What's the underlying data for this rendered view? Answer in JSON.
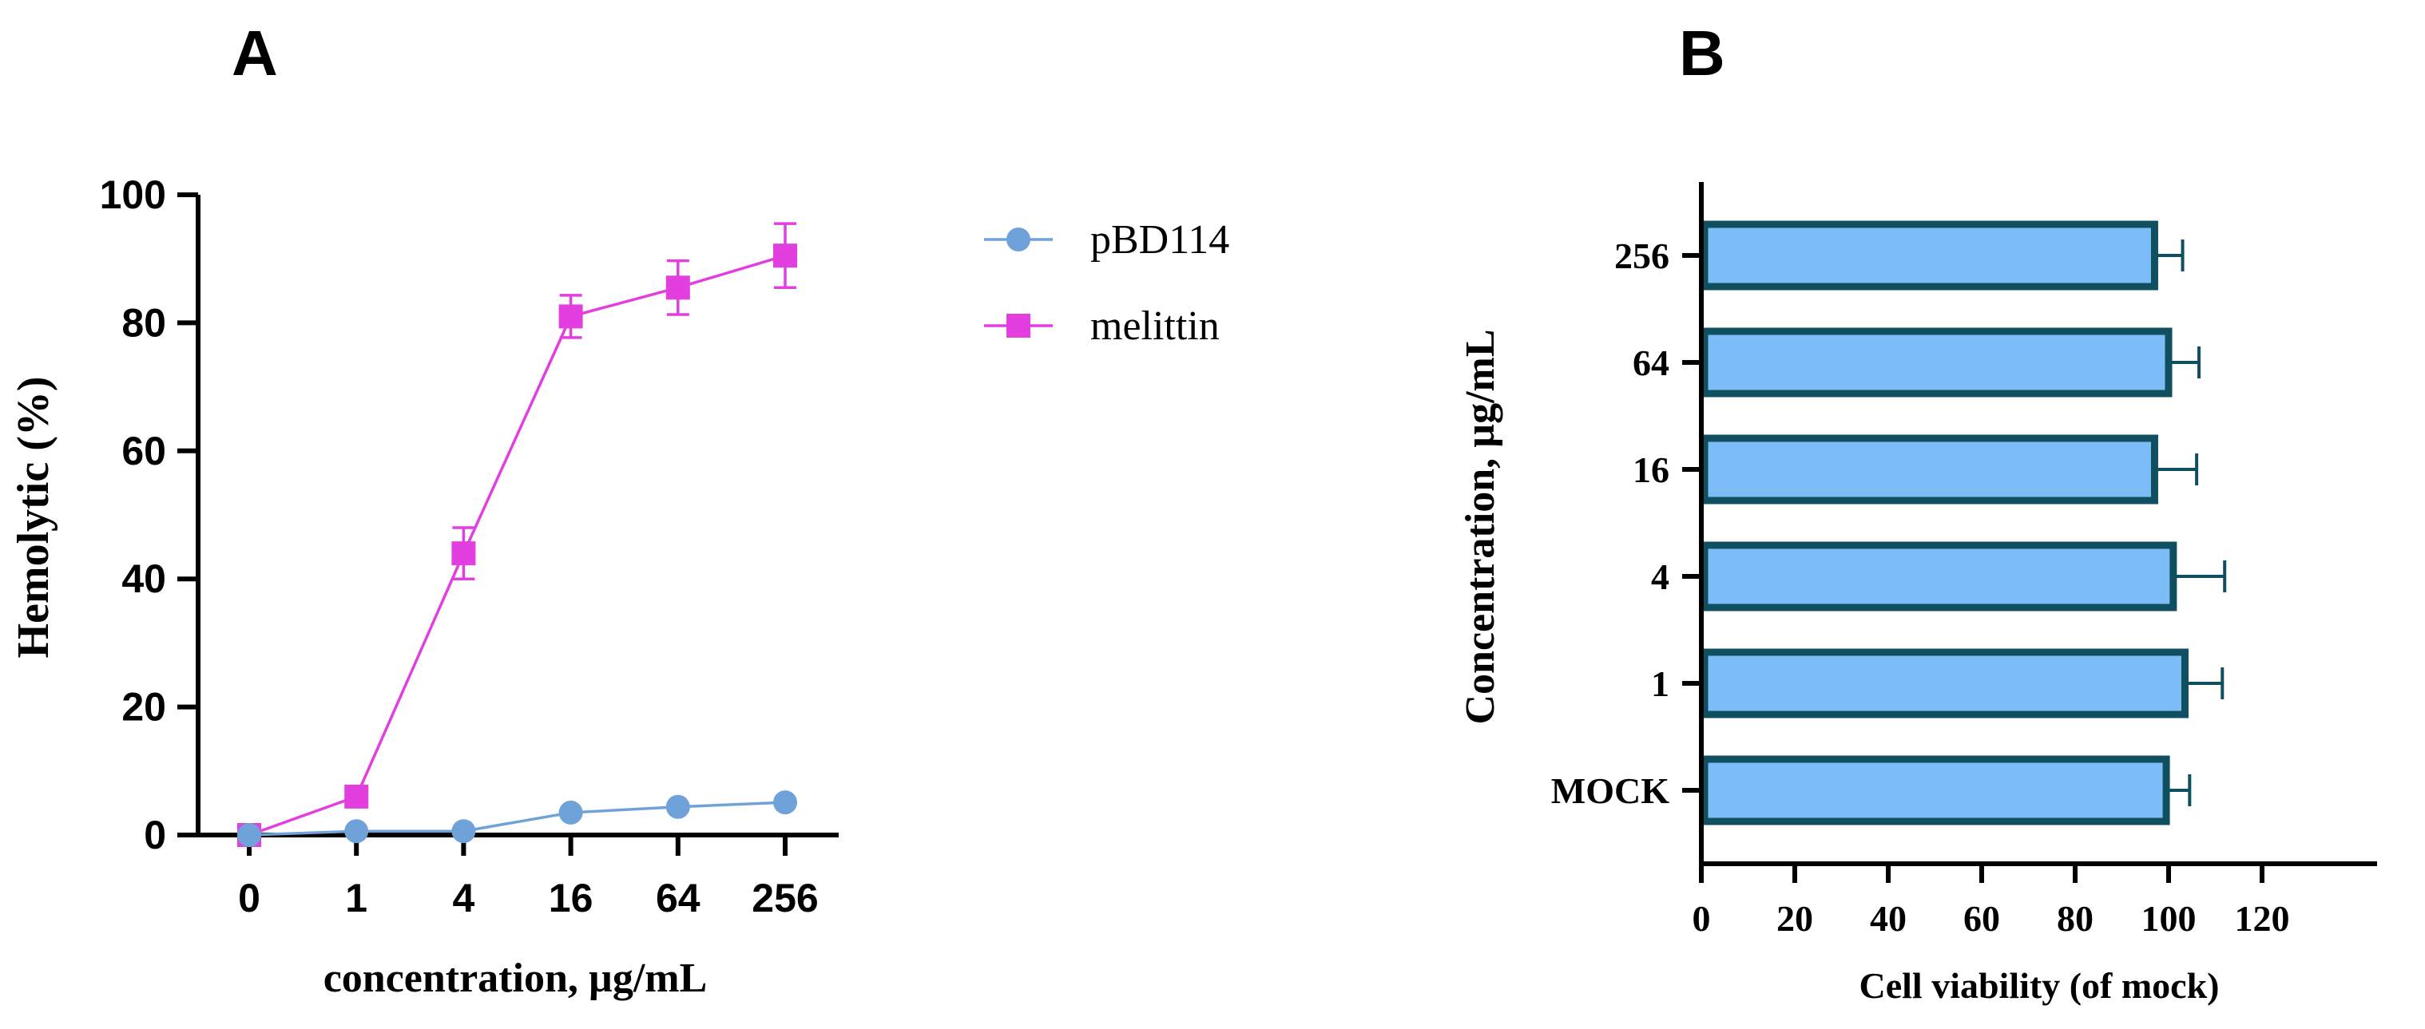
{
  "panels": {
    "a": {
      "letter": "A"
    },
    "b": {
      "letter": "B"
    }
  },
  "chart_data": [
    {
      "type": "line",
      "title": "",
      "xlabel": "concentration, µg/mL",
      "ylabel": "Hemolytic (%)",
      "categories": [
        "0",
        "1",
        "4",
        "16",
        "64",
        "256"
      ],
      "ylim": [
        0,
        100
      ],
      "yticks": [
        0,
        20,
        40,
        60,
        80,
        100
      ],
      "grid": false,
      "legend": "right",
      "series": [
        {
          "name": "pBD114",
          "marker": "circle",
          "color": "#6fa2d8",
          "values": [
            0,
            0.6,
            0.6,
            3.5,
            4.4,
            5.1
          ],
          "errors": [
            0,
            0,
            0,
            0,
            0,
            0
          ]
        },
        {
          "name": "melittin",
          "marker": "square",
          "color": "#e23ee0",
          "values": [
            0,
            6,
            44,
            81,
            85.5,
            90.5
          ],
          "errors": [
            0,
            0,
            4,
            3.3,
            4.2,
            5
          ]
        }
      ]
    },
    {
      "type": "bar",
      "orientation": "horizontal",
      "title": "",
      "xlabel": "Cell viability (of mock)",
      "ylabel": "Concentration, µg/mL",
      "categories": [
        "256",
        "64",
        "16",
        "4",
        "1",
        "MOCK"
      ],
      "values": [
        97,
        100,
        97,
        101,
        103.5,
        99.5
      ],
      "errors": [
        6,
        6.5,
        9,
        11,
        8,
        5
      ],
      "xlim": [
        0,
        120
      ],
      "xticks": [
        0,
        20,
        40,
        60,
        80,
        100,
        120
      ],
      "grid": false,
      "bar_color": "#7cbdf8",
      "bar_edge_color": "#0f4f5f"
    }
  ]
}
